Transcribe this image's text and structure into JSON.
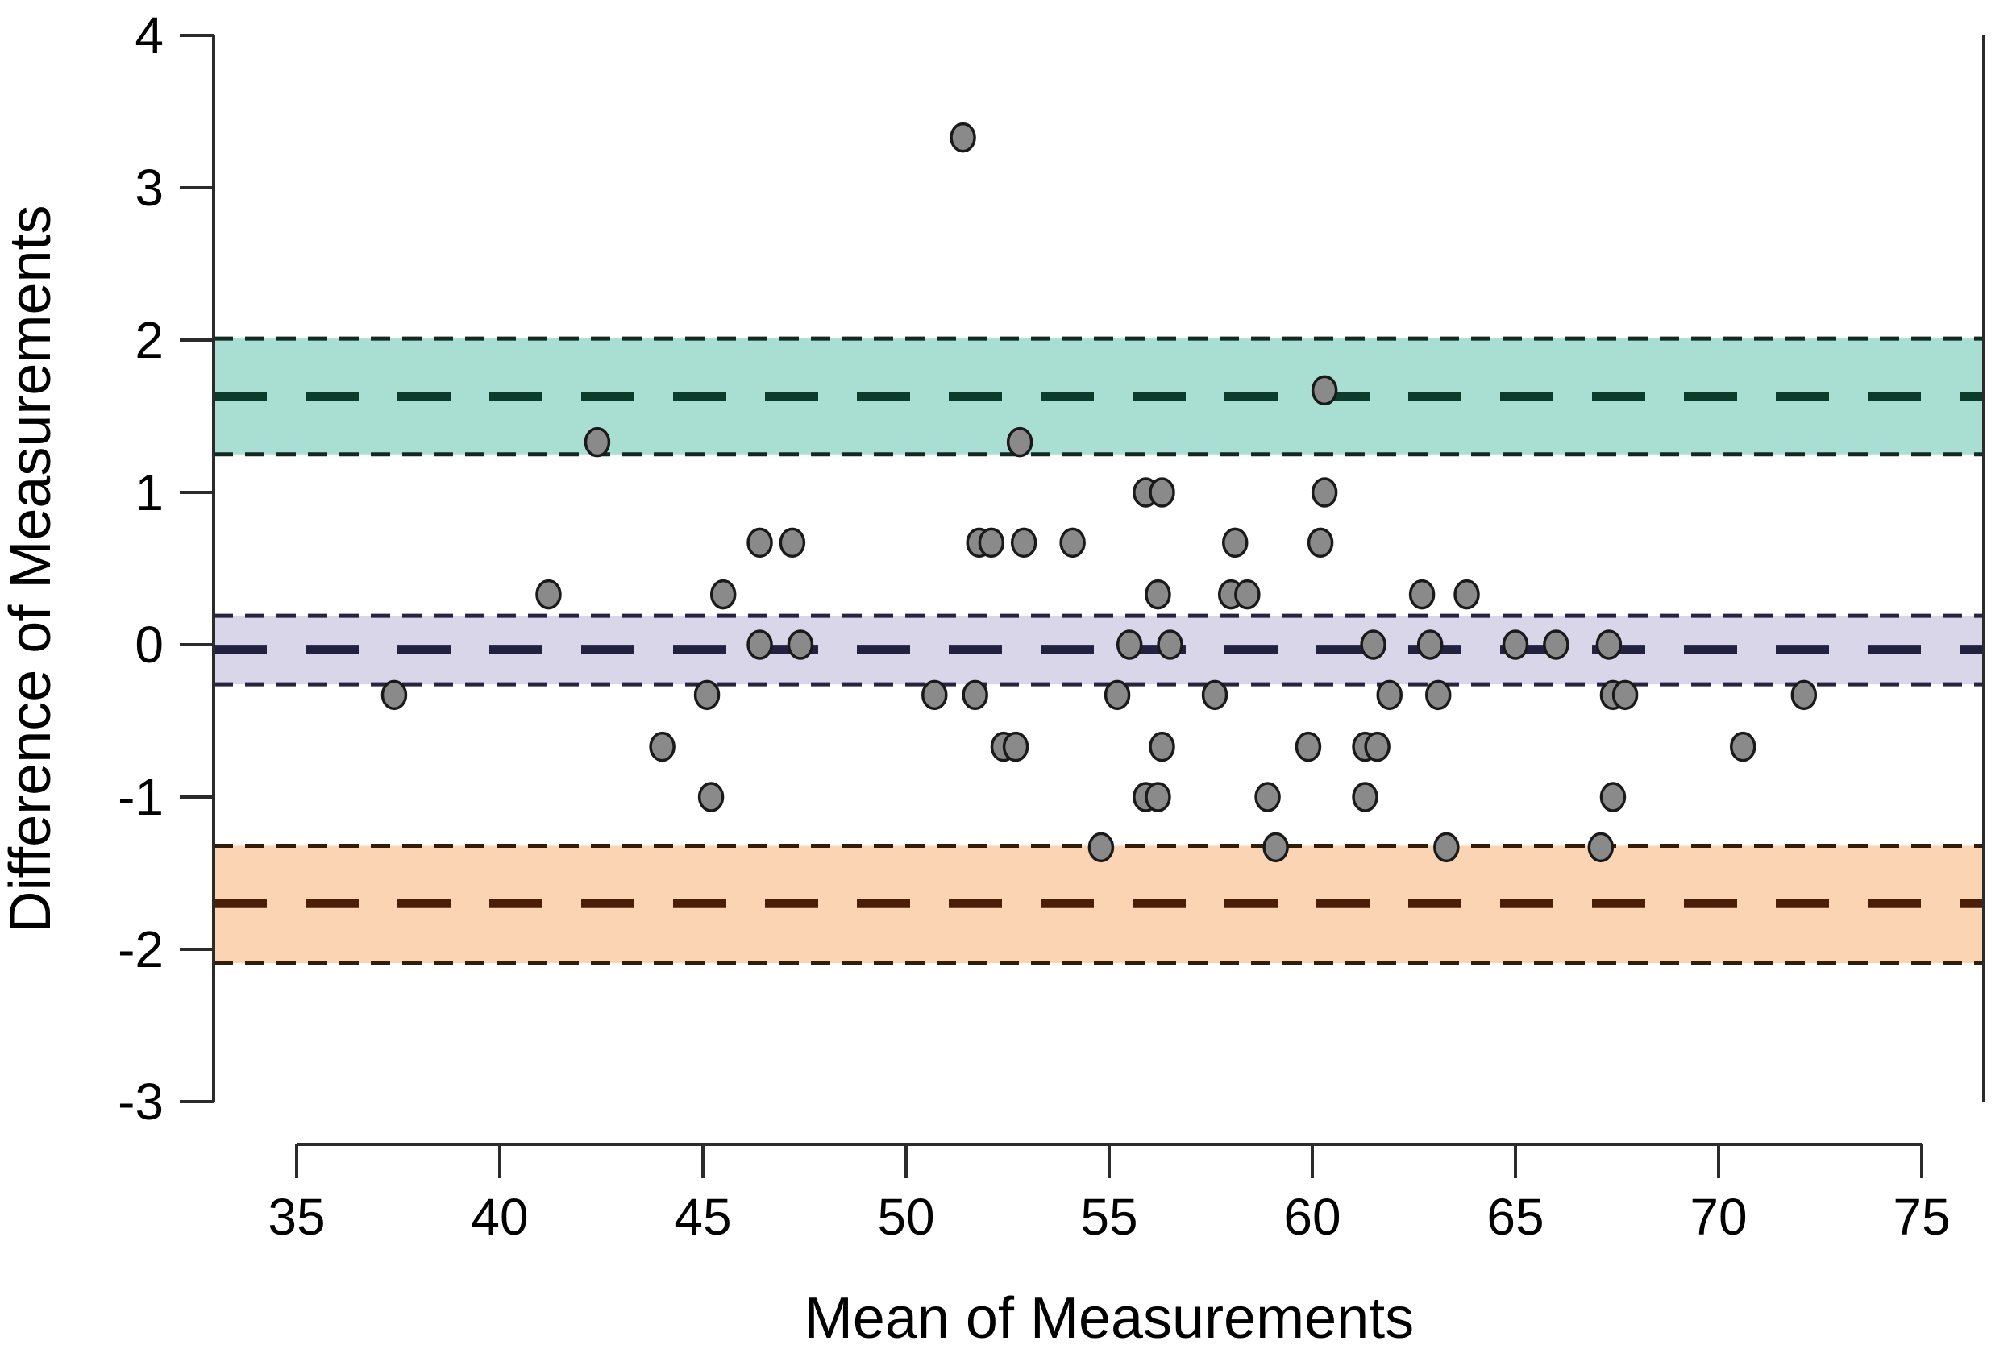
{
  "chart_data": {
    "type": "scatter",
    "title": "",
    "xlabel": "Mean of Measurements",
    "ylabel": "Difference of Measurements",
    "xlim": [
      32.9,
      77.0
    ],
    "ylim": [
      -3,
      4
    ],
    "x_ticks": [
      35,
      40,
      45,
      50,
      55,
      60,
      65,
      70,
      75
    ],
    "y_ticks": [
      4,
      3,
      2,
      1,
      0,
      -1,
      -2,
      -3
    ],
    "grid": "off",
    "legend": "none",
    "bands": [
      {
        "name": "upper-limit-of-agreement",
        "center": 1.63,
        "ci_low": 1.25,
        "ci_high": 2.01,
        "fill": "#a9ded2",
        "center_line_color": "#0d3b2c",
        "edge_line_color": "#122a21"
      },
      {
        "name": "mean-bias",
        "center": -0.03,
        "ci_low": -0.26,
        "ci_high": 0.19,
        "fill": "#d9d6e9",
        "center_line_color": "#232140",
        "edge_line_color": "#262440"
      },
      {
        "name": "lower-limit-of-agreement",
        "center": -1.7,
        "ci_low": -2.09,
        "ci_high": -1.32,
        "fill": "#fbd4b4",
        "center_line_color": "#4a1e07",
        "edge_line_color": "#331c08"
      }
    ],
    "point_style": {
      "fill": "#8a8a8a",
      "stroke": "#1a1a1a"
    },
    "points": [
      [
        37.4,
        -0.33
      ],
      [
        41.2,
        0.33
      ],
      [
        42.4,
        1.33
      ],
      [
        44.0,
        -0.67
      ],
      [
        45.1,
        -0.33
      ],
      [
        45.2,
        -1.0
      ],
      [
        45.5,
        0.33
      ],
      [
        46.4,
        0.67
      ],
      [
        46.4,
        0.0
      ],
      [
        47.2,
        0.67
      ],
      [
        47.4,
        0.0
      ],
      [
        50.7,
        -0.33
      ],
      [
        51.4,
        3.33
      ],
      [
        51.7,
        -0.33
      ],
      [
        51.8,
        0.67
      ],
      [
        52.1,
        0.67
      ],
      [
        52.4,
        -0.67
      ],
      [
        52.7,
        -0.67
      ],
      [
        52.8,
        1.33
      ],
      [
        52.9,
        0.67
      ],
      [
        54.1,
        0.67
      ],
      [
        54.8,
        -1.33
      ],
      [
        55.2,
        -0.33
      ],
      [
        55.5,
        0.0
      ],
      [
        55.9,
        1.0
      ],
      [
        55.9,
        -1.0
      ],
      [
        56.2,
        0.33
      ],
      [
        56.2,
        -1.0
      ],
      [
        56.3,
        1.0
      ],
      [
        56.3,
        -0.67
      ],
      [
        56.5,
        0.0
      ],
      [
        57.6,
        -0.33
      ],
      [
        58.0,
        0.33
      ],
      [
        58.1,
        0.67
      ],
      [
        58.4,
        0.33
      ],
      [
        58.9,
        -1.0
      ],
      [
        59.1,
        -1.33
      ],
      [
        59.9,
        -0.67
      ],
      [
        60.2,
        0.67
      ],
      [
        60.3,
        1.67
      ],
      [
        60.3,
        1.0
      ],
      [
        61.3,
        -0.67
      ],
      [
        61.3,
        -1.0
      ],
      [
        61.5,
        0.0
      ],
      [
        61.6,
        -0.67
      ],
      [
        61.9,
        -0.33
      ],
      [
        62.7,
        0.33
      ],
      [
        62.9,
        0.0
      ],
      [
        63.1,
        -0.33
      ],
      [
        63.3,
        -1.33
      ],
      [
        63.8,
        0.33
      ],
      [
        65.0,
        0.0
      ],
      [
        66.0,
        0.0
      ],
      [
        67.1,
        -1.33
      ],
      [
        67.3,
        0.0
      ],
      [
        67.4,
        -0.33
      ],
      [
        67.4,
        -1.0
      ],
      [
        67.7,
        -0.33
      ],
      [
        70.6,
        -0.67
      ],
      [
        72.1,
        -0.33
      ]
    ]
  }
}
